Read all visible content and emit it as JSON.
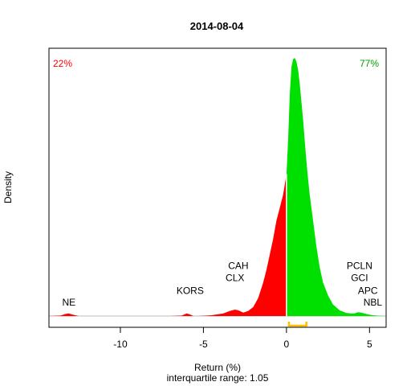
{
  "chart_data": {
    "type": "area",
    "title": "2014-08-04",
    "xlabel": "Return (%)",
    "ylabel": "Density",
    "subtitle": "interquartile range: 1.05",
    "xlim": [
      -14.3,
      6.0
    ],
    "ylim": [
      0,
      1.0
    ],
    "xticks": [
      -10,
      -5,
      0,
      5
    ],
    "grid": false,
    "split_at": 0,
    "negative_pct": "22%",
    "positive_pct": "77%",
    "colors": {
      "negative": "#ff0000",
      "positive": "#00e000",
      "iqr": "#ffc000",
      "baseline": "#bebebe"
    },
    "iqr": [
      0.15,
      1.2
    ],
    "density": {
      "x": [
        -14.3,
        -13.6,
        -13.3,
        -13.1,
        -12.9,
        -12.5,
        -11,
        -9,
        -7,
        -6.3,
        -6.0,
        -5.8,
        -5.6,
        -5.3,
        -4.5,
        -3.8,
        -3.4,
        -3.1,
        -2.9,
        -2.6,
        -2.3,
        -2.0,
        -1.7,
        -1.4,
        -1.2,
        -1.0,
        -0.8,
        -0.6,
        -0.4,
        -0.2,
        0,
        0.1,
        0.2,
        0.3,
        0.4,
        0.5,
        0.6,
        0.7,
        0.8,
        0.9,
        1.0,
        1.1,
        1.2,
        1.3,
        1.4,
        1.6,
        1.8,
        2.0,
        2.2,
        2.5,
        2.8,
        3.2,
        3.6,
        3.9,
        4.1,
        4.3,
        4.5,
        4.8,
        5.1,
        5.4,
        5.7,
        6.0
      ],
      "y": [
        0,
        0.002,
        0.008,
        0.01,
        0.006,
        0,
        0,
        0,
        0,
        0.002,
        0.01,
        0.006,
        0,
        0,
        0.003,
        0.01,
        0.02,
        0.025,
        0.022,
        0.013,
        0.02,
        0.035,
        0.07,
        0.13,
        0.18,
        0.24,
        0.3,
        0.37,
        0.42,
        0.47,
        0.55,
        0.68,
        0.86,
        0.965,
        0.995,
        1.0,
        0.985,
        0.955,
        0.9,
        0.83,
        0.76,
        0.68,
        0.6,
        0.53,
        0.47,
        0.37,
        0.27,
        0.19,
        0.13,
        0.08,
        0.045,
        0.022,
        0.012,
        0.01,
        0.01,
        0.015,
        0.013,
        0.008,
        0.004,
        0.002,
        0.001,
        0
      ]
    },
    "annotations": [
      {
        "label": "NE",
        "x": -13.1,
        "y": 0.04
      },
      {
        "label": "KORS",
        "x": -5.8,
        "y": 0.085
      },
      {
        "label": "CLX",
        "x": -3.1,
        "y": 0.135
      },
      {
        "label": "CAH",
        "x": -2.9,
        "y": 0.183
      },
      {
        "label": "PCLN",
        "x": 4.4,
        "y": 0.183
      },
      {
        "label": "GCI",
        "x": 4.4,
        "y": 0.135
      },
      {
        "label": "APC",
        "x": 4.9,
        "y": 0.085
      },
      {
        "label": "NBL",
        "x": 5.2,
        "y": 0.04
      }
    ]
  }
}
